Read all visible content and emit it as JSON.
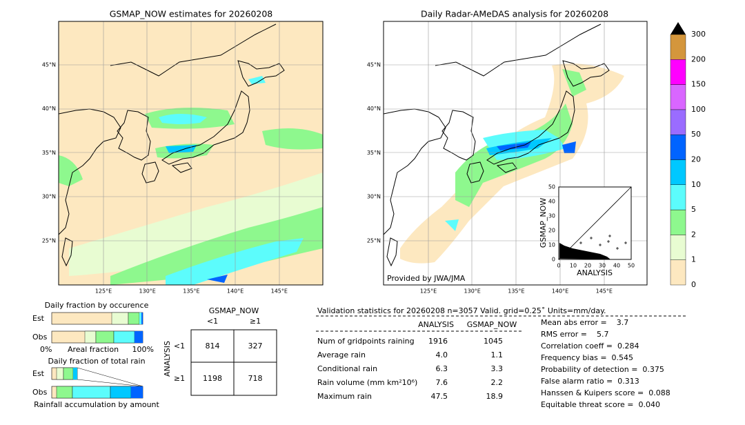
{
  "left_map": {
    "title": "GSMAP_NOW estimates for 20260208",
    "lat_labels": [
      "45°N",
      "40°N",
      "35°N",
      "30°N",
      "25°N"
    ],
    "lon_labels": [
      "125°E",
      "130°E",
      "135°E",
      "140°E",
      "145°E"
    ]
  },
  "right_map": {
    "title": "Daily Radar-AMeDAS analysis for 20260208",
    "lat_labels": [
      "45°N",
      "40°N",
      "35°N",
      "30°N",
      "25°N"
    ],
    "lon_labels": [
      "125°E",
      "130°E",
      "135°E",
      "140°E",
      "145°E"
    ],
    "credit": "Provided by JWA/JMA"
  },
  "inset_scatter": {
    "x_label": "ANALYSIS",
    "y_label": "GSMAP_NOW",
    "ticks": [
      "0",
      "10",
      "20",
      "30",
      "40",
      "50"
    ]
  },
  "colorbar": {
    "labels": [
      "0",
      "1",
      "2",
      "5",
      "10",
      "20",
      "50",
      "100",
      "150",
      "200",
      "300"
    ],
    "colors": [
      "#fde8c0",
      "#e8fcd2",
      "#8ef88e",
      "#5cfcfc",
      "#00c8ff",
      "#0064ff",
      "#9a6cff",
      "#d966ff",
      "#ff00ff",
      "#d4963c"
    ]
  },
  "occurrence": {
    "title": "Daily fraction by occurence",
    "rows": [
      "Est",
      "Obs"
    ],
    "axis_labels": [
      "0%",
      "Areal fraction",
      "100%"
    ]
  },
  "total_rain": {
    "title": "Daily fraction of total rain",
    "rows": [
      "Est",
      "Obs"
    ],
    "x_label": "Rainfall accumulation by amount"
  },
  "contingency": {
    "col_title": "GSMAP_NOW",
    "row_title": "ANALYSIS",
    "cols": [
      "<1",
      "≥1"
    ],
    "rows": [
      "<1",
      "≥1"
    ],
    "cells": [
      [
        "814",
        "327"
      ],
      [
        "1198",
        "718"
      ]
    ]
  },
  "stats": {
    "header": "Validation statistics for 20260208  n=3057 Valid. grid=0.25˚ Units=mm/day.",
    "columns": [
      "ANALYSIS",
      "GSMAP_NOW"
    ],
    "rows": [
      {
        "label": "Num of gridpoints raining",
        "values": [
          "1916",
          "1045"
        ]
      },
      {
        "label": "Average rain",
        "values": [
          "4.0",
          "1.1"
        ]
      },
      {
        "label": "Conditional rain",
        "values": [
          "6.3",
          "3.3"
        ]
      },
      {
        "label": "Rain volume (mm km²10⁶)",
        "values": [
          "7.6",
          "2.2"
        ]
      },
      {
        "label": "Maximum rain",
        "values": [
          "47.5",
          "18.9"
        ]
      }
    ],
    "scores": [
      "Mean abs error =    3.7",
      "RMS error =    5.7",
      "Correlation coeff =  0.284",
      "Frequency bias =  0.545",
      "Probability of detection =  0.375",
      "False alarm ratio =  0.313",
      "Hanssen & Kuipers score =  0.088",
      "Equitable threat score =  0.040"
    ]
  }
}
